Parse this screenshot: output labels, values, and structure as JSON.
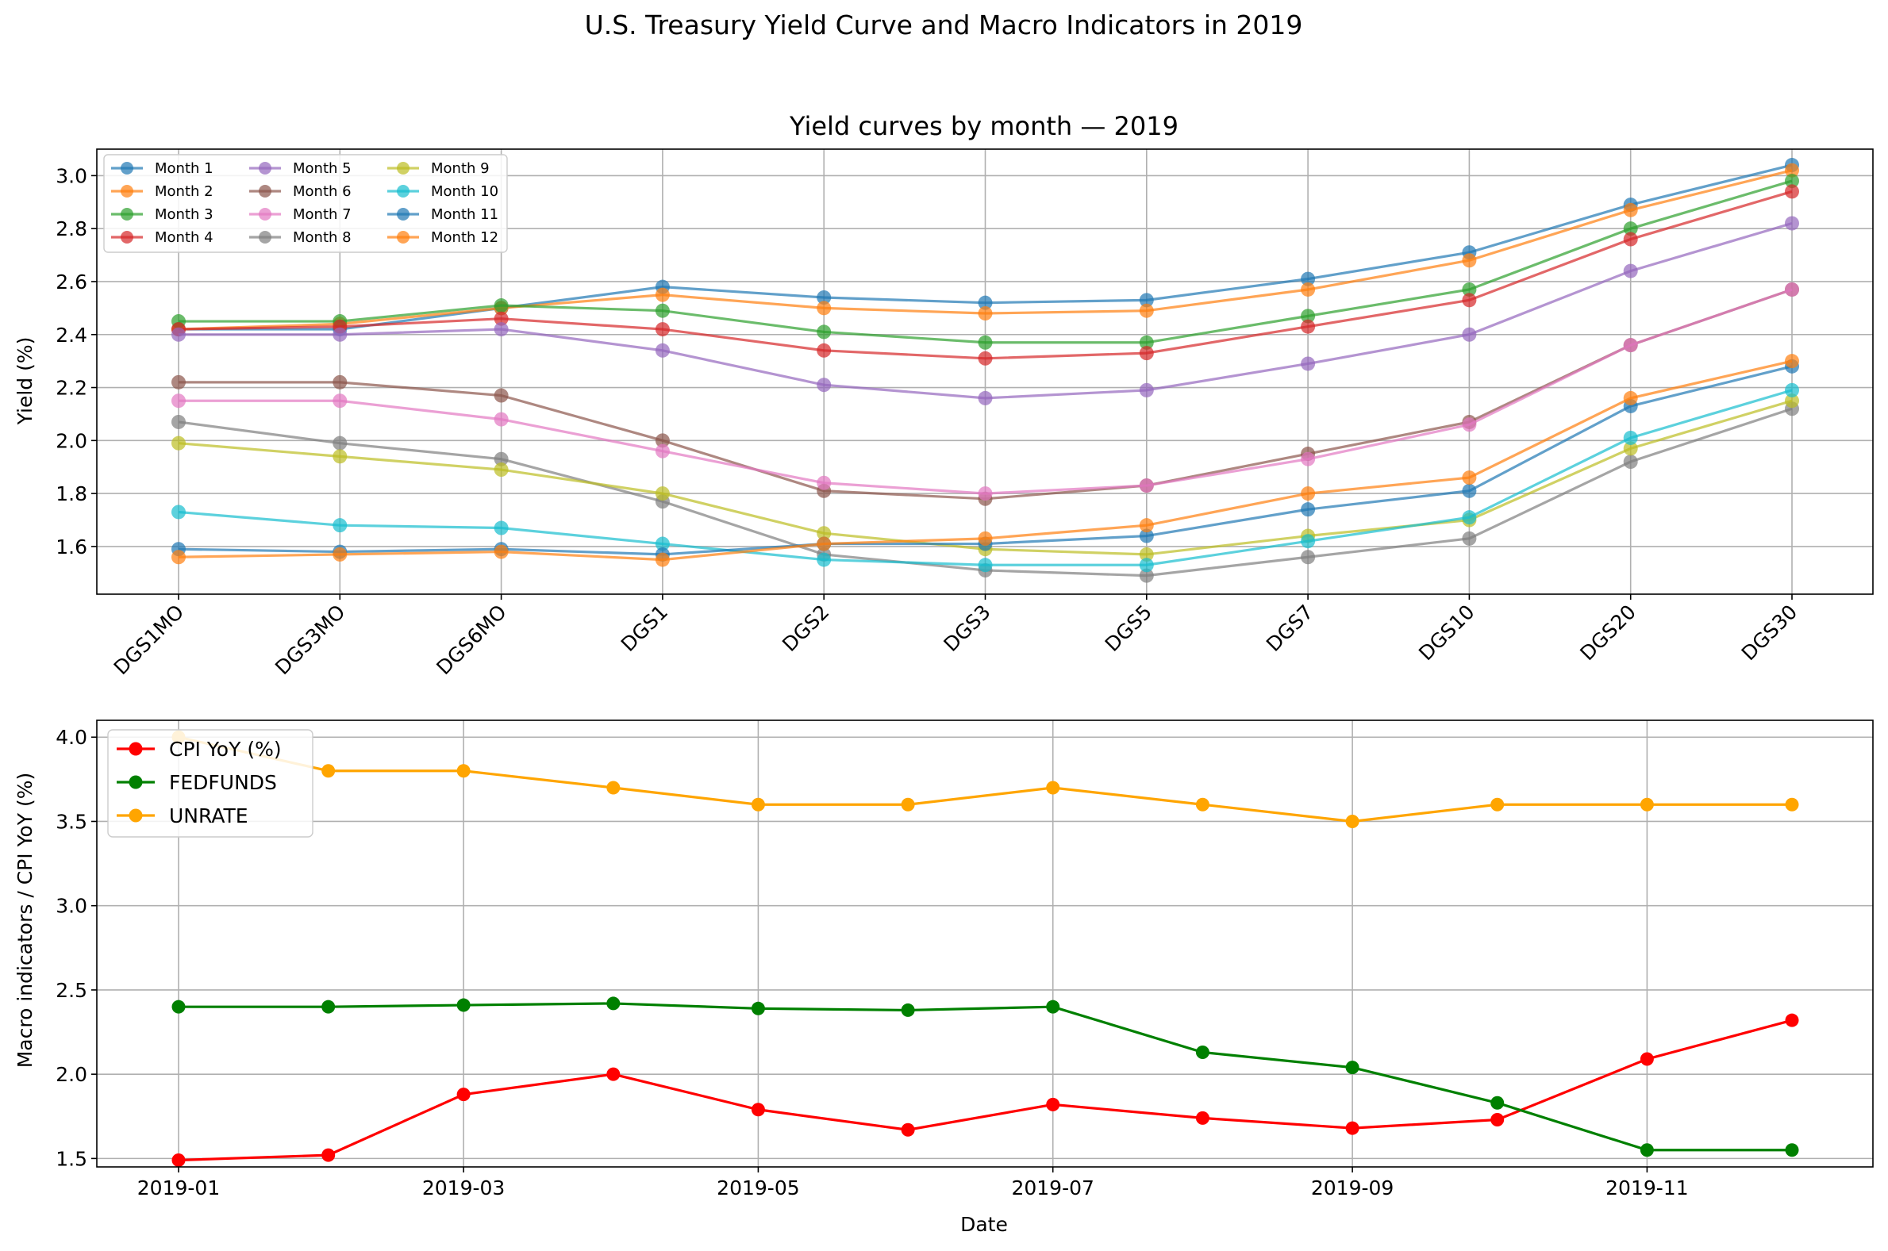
{
  "suptitle": "U.S. Treasury Yield Curve and Macro Indicators in 2019",
  "chart_data": [
    {
      "type": "line",
      "title": "Yield curves by month — 2019",
      "xlabel": "",
      "ylabel": "Yield (%)",
      "categories": [
        "DGS1MO",
        "DGS3MO",
        "DGS6MO",
        "DGS1",
        "DGS2",
        "DGS3",
        "DGS5",
        "DGS7",
        "DGS10",
        "DGS20",
        "DGS30"
      ],
      "ylim": [
        1.42,
        3.1
      ],
      "yticks": [
        "1.6",
        "1.8",
        "2.0",
        "2.2",
        "2.4",
        "2.6",
        "2.8",
        "3.0"
      ],
      "grid": true,
      "legend_position": "top-left",
      "legend_columns": 3,
      "series": [
        {
          "name": "Month 1",
          "color": "#1f77b4",
          "values": [
            2.42,
            2.42,
            2.5,
            2.58,
            2.54,
            2.52,
            2.53,
            2.61,
            2.71,
            2.89,
            3.04
          ]
        },
        {
          "name": "Month 2",
          "color": "#ff7f0e",
          "values": [
            2.42,
            2.44,
            2.5,
            2.55,
            2.5,
            2.48,
            2.49,
            2.57,
            2.68,
            2.87,
            3.02
          ]
        },
        {
          "name": "Month 3",
          "color": "#2ca02c",
          "values": [
            2.45,
            2.45,
            2.51,
            2.49,
            2.41,
            2.37,
            2.37,
            2.47,
            2.57,
            2.8,
            2.98
          ]
        },
        {
          "name": "Month 4",
          "color": "#d62728",
          "values": [
            2.42,
            2.43,
            2.46,
            2.42,
            2.34,
            2.31,
            2.33,
            2.43,
            2.53,
            2.76,
            2.94
          ]
        },
        {
          "name": "Month 5",
          "color": "#9467bd",
          "values": [
            2.4,
            2.4,
            2.42,
            2.34,
            2.21,
            2.16,
            2.19,
            2.29,
            2.4,
            2.64,
            2.82
          ]
        },
        {
          "name": "Month 6",
          "color": "#8c564b",
          "values": [
            2.22,
            2.22,
            2.17,
            2.0,
            1.81,
            1.78,
            1.83,
            1.95,
            2.07,
            2.36,
            2.57
          ]
        },
        {
          "name": "Month 7",
          "color": "#e377c2",
          "values": [
            2.15,
            2.15,
            2.08,
            1.96,
            1.84,
            1.8,
            1.83,
            1.93,
            2.06,
            2.36,
            2.57
          ]
        },
        {
          "name": "Month 8",
          "color": "#7f7f7f",
          "values": [
            2.07,
            1.99,
            1.93,
            1.77,
            1.57,
            1.51,
            1.49,
            1.56,
            1.63,
            1.92,
            2.12
          ]
        },
        {
          "name": "Month 9",
          "color": "#bcbd22",
          "values": [
            1.99,
            1.94,
            1.89,
            1.8,
            1.65,
            1.59,
            1.57,
            1.64,
            1.7,
            1.97,
            2.15
          ]
        },
        {
          "name": "Month 10",
          "color": "#17becf",
          "values": [
            1.73,
            1.68,
            1.67,
            1.61,
            1.55,
            1.53,
            1.53,
            1.62,
            1.71,
            2.01,
            2.19
          ]
        },
        {
          "name": "Month 11",
          "color": "#1f77b4",
          "values": [
            1.59,
            1.58,
            1.59,
            1.57,
            1.61,
            1.61,
            1.64,
            1.74,
            1.81,
            2.13,
            2.28
          ]
        },
        {
          "name": "Month 12",
          "color": "#ff7f0e",
          "values": [
            1.56,
            1.57,
            1.58,
            1.55,
            1.61,
            1.63,
            1.68,
            1.8,
            1.86,
            2.16,
            2.3
          ]
        }
      ]
    },
    {
      "type": "line",
      "title": "",
      "xlabel": "Date",
      "ylabel": "Macro indicators / CPI YoY (%)",
      "x": [
        "2019-01-01",
        "2019-02-01",
        "2019-03-01",
        "2019-04-01",
        "2019-05-01",
        "2019-06-01",
        "2019-07-01",
        "2019-08-01",
        "2019-09-01",
        "2019-10-01",
        "2019-11-01",
        "2019-12-01"
      ],
      "xticks": [
        "2019-01",
        "2019-03",
        "2019-05",
        "2019-07",
        "2019-09",
        "2019-11"
      ],
      "ylim": [
        1.45,
        4.1
      ],
      "yticks": [
        "1.5",
        "2.0",
        "2.5",
        "3.0",
        "3.5",
        "4.0"
      ],
      "grid": true,
      "legend_position": "top-left",
      "series": [
        {
          "name": "CPI YoY (%)",
          "color": "#ff0000",
          "values": [
            1.49,
            1.52,
            1.88,
            2.0,
            1.79,
            1.67,
            1.82,
            1.74,
            1.68,
            1.73,
            2.09,
            2.32
          ]
        },
        {
          "name": "FEDFUNDS",
          "color": "#008000",
          "values": [
            2.4,
            2.4,
            2.41,
            2.42,
            2.39,
            2.38,
            2.4,
            2.13,
            2.04,
            1.83,
            1.55,
            1.55
          ]
        },
        {
          "name": "UNRATE",
          "color": "#ffa500",
          "values": [
            4.0,
            3.8,
            3.8,
            3.7,
            3.6,
            3.6,
            3.7,
            3.6,
            3.5,
            3.6,
            3.6,
            3.6
          ]
        }
      ]
    }
  ]
}
